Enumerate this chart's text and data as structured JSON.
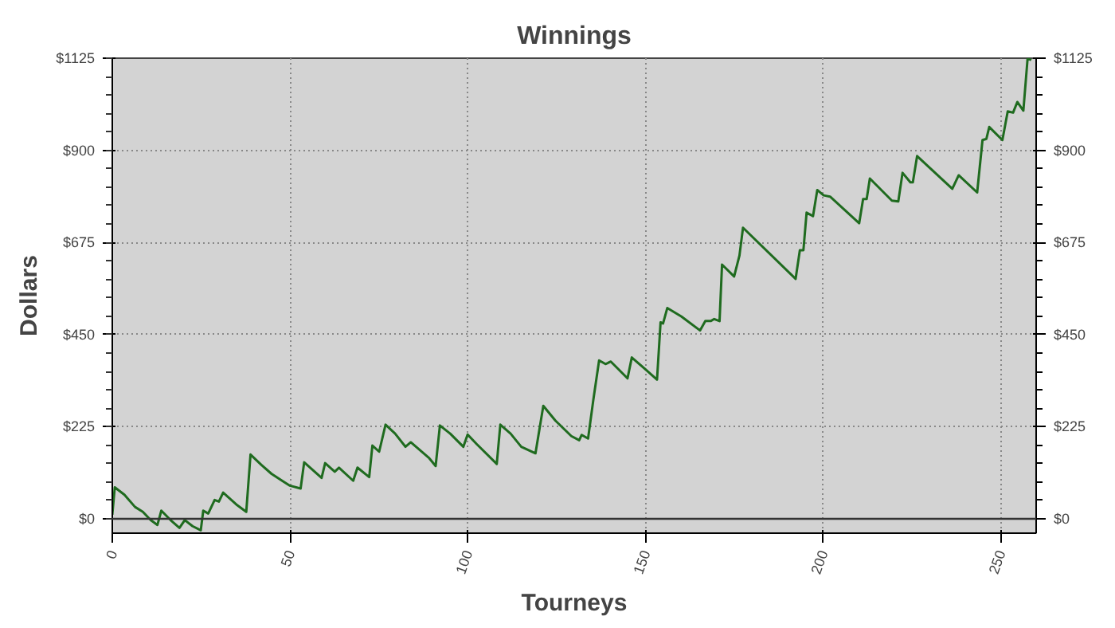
{
  "chart_data": {
    "type": "line",
    "title": "Winnings",
    "xlabel": "Tourneys",
    "ylabel": "Dollars",
    "x": [
      0,
      0.7,
      3.4,
      6.4,
      8.6,
      10.8,
      12.7,
      13.8,
      16.4,
      18.9,
      20.4,
      22.6,
      24.9,
      25.6,
      27,
      28.8,
      30,
      31.2,
      35.2,
      37.7,
      38.9,
      41.9,
      44.8,
      47.8,
      50,
      53,
      54,
      58.9,
      59.9,
      62.6,
      63.8,
      67.8,
      69,
      72.3,
      73.2,
      75.1,
      76.9,
      79.6,
      82.5,
      84,
      89.2,
      91,
      92.2,
      95.1,
      98.8,
      100,
      102.5,
      108.2,
      109.2,
      112.1,
      115.1,
      119.1,
      121.3,
      124.7,
      129.2,
      131.4,
      132.1,
      133.9,
      135.4,
      137,
      138.8,
      140.3,
      145,
      146.2,
      149.9,
      153.3,
      154.3,
      155,
      156.2,
      160.2,
      165.4,
      166.9,
      168.4,
      169.4,
      170.9,
      171.6,
      175,
      176.5,
      177.5,
      192.3,
      193.5,
      194.5,
      195.4,
      197.2,
      198.4,
      200.2,
      202,
      210.2,
      211.3,
      212.3,
      213.2,
      219.4,
      221.2,
      222.4,
      224.6,
      225.3,
      226.5,
      236.4,
      238.2,
      243.4,
      244.9,
      246,
      246.8,
      250.5,
      252,
      253.5,
      254.7,
      256.4,
      257.6,
      258.6
    ],
    "series": [
      {
        "color": "#1f6b1f",
        "values": [
          10,
          77,
          59,
          29,
          17,
          -3,
          -15,
          20,
          -3,
          -22,
          -3,
          -18,
          -28,
          20,
          13,
          46,
          42,
          64,
          33,
          17,
          157,
          132,
          110,
          93,
          81,
          74,
          138,
          100,
          136,
          115,
          125,
          93,
          125,
          102,
          179,
          164,
          230,
          208,
          176,
          187,
          148,
          129,
          228,
          208,
          176,
          206,
          183,
          134,
          230,
          208,
          176,
          160,
          276,
          240,
          202,
          192,
          205,
          196,
          292,
          387,
          378,
          384,
          343,
          394,
          366,
          340,
          480,
          477,
          515,
          494,
          460,
          483,
          483,
          488,
          483,
          621,
          592,
          643,
          711,
          586,
          656,
          656,
          748,
          739,
          803,
          790,
          787,
          722,
          781,
          781,
          831,
          777,
          775,
          845,
          822,
          822,
          886,
          806,
          839,
          797,
          925,
          928,
          957,
          925,
          995,
          992,
          1018,
          997,
          1125,
          1120
        ]
      }
    ],
    "xlim": [
      0,
      260
    ],
    "xticks": [
      0,
      50,
      100,
      150,
      200,
      250
    ],
    "ylim": [
      -35,
      1125
    ],
    "yticks": [
      {
        "value": 0,
        "label": "$0"
      },
      {
        "value": 225,
        "label": "$225"
      },
      {
        "value": 450,
        "label": "$450"
      },
      {
        "value": 675,
        "label": "$675"
      },
      {
        "value": 900,
        "label": "$900"
      },
      {
        "value": 1125,
        "label": "$1125"
      }
    ],
    "y2lim": [
      -35,
      1125
    ],
    "y2ticks": [
      {
        "value": 0,
        "label": "$0"
      },
      {
        "value": 225,
        "label": "$225"
      },
      {
        "value": 450,
        "label": "$450"
      },
      {
        "value": 675,
        "label": "$675"
      },
      {
        "value": 900,
        "label": "$900"
      },
      {
        "value": 1125,
        "label": "$1125"
      }
    ],
    "ref_lines": [
      {
        "axis": "y",
        "value": 0,
        "color": "#333333",
        "line_style": "solid"
      }
    ],
    "grid": true,
    "marker": "none",
    "line_style": "solid"
  }
}
